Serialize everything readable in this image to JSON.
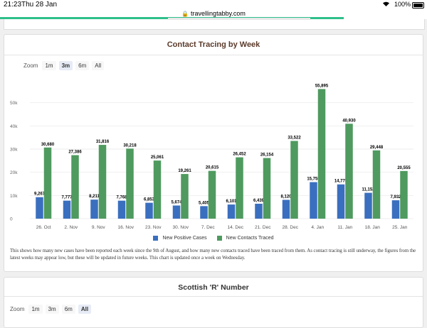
{
  "status_bar": {
    "time": "21:23",
    "date": "Thu 28 Jan",
    "battery": "100%"
  },
  "browser": {
    "url": "travellingtabby.com",
    "progress": 0.805
  },
  "card1": {
    "title": "Contact Tracing by Week",
    "zoom": {
      "label": "Zoom",
      "options": [
        "1m",
        "3m",
        "6m",
        "All"
      ],
      "selected": "3m"
    },
    "description": "This shows how many new cases have been reported each week since the 9th of August, and how many new contacts traced have been traced from them. As contact tracing is still underway, the figures from the latest weeks may appear low, but these will be updated in future weeks. This chart is updated once a week on Wednesday."
  },
  "card2": {
    "title": "Scottish 'R' Number",
    "zoom": {
      "label": "Zoom",
      "options": [
        "1m",
        "3m",
        "6m",
        "All"
      ],
      "selected": "All"
    }
  },
  "colors": {
    "cases": "#3a6fbf",
    "contacts": "#4f9a5f"
  },
  "chart_data": {
    "type": "bar",
    "title": "Contact Tracing by Week",
    "categories": [
      "26. Oct",
      "2. Nov",
      "9. Nov",
      "16. Nov",
      "23. Nov",
      "30. Nov",
      "7. Dec",
      "14. Dec",
      "21. Dec",
      "28. Dec",
      "4. Jan",
      "11. Jan",
      "18. Jan",
      "25. Jan"
    ],
    "series": [
      {
        "name": "New Positive Cases",
        "values": [
          9267,
          7777,
          8211,
          7768,
          6853,
          5674,
          5405,
          6101,
          6439,
          8120,
          15755,
          14775,
          11152,
          7932
        ],
        "labels": [
          "9,267",
          "7,777",
          "8,211",
          "7,768",
          "6,853",
          "5,674",
          "5,405",
          "6,101",
          "6,439",
          "8,120",
          "15,755",
          "14,775",
          "11,152",
          "7,932"
        ]
      },
      {
        "name": "New Contacts Traced",
        "values": [
          30680,
          27386,
          31816,
          30218,
          25061,
          19261,
          20615,
          26452,
          26154,
          33522,
          55895,
          40930,
          29448,
          20555
        ],
        "labels": [
          "30,680",
          "27,386",
          "31,816",
          "30,218",
          "25,061",
          "19,261",
          "20,615",
          "26,452",
          "26,154",
          "33,522",
          "55,895",
          "40,930",
          "29,448",
          "20,555"
        ]
      }
    ],
    "yticks": [
      "0",
      "10k",
      "20k",
      "30k",
      "40k",
      "50k"
    ],
    "ylim": [
      0,
      60000
    ],
    "grid": true,
    "legend": "bottom"
  }
}
